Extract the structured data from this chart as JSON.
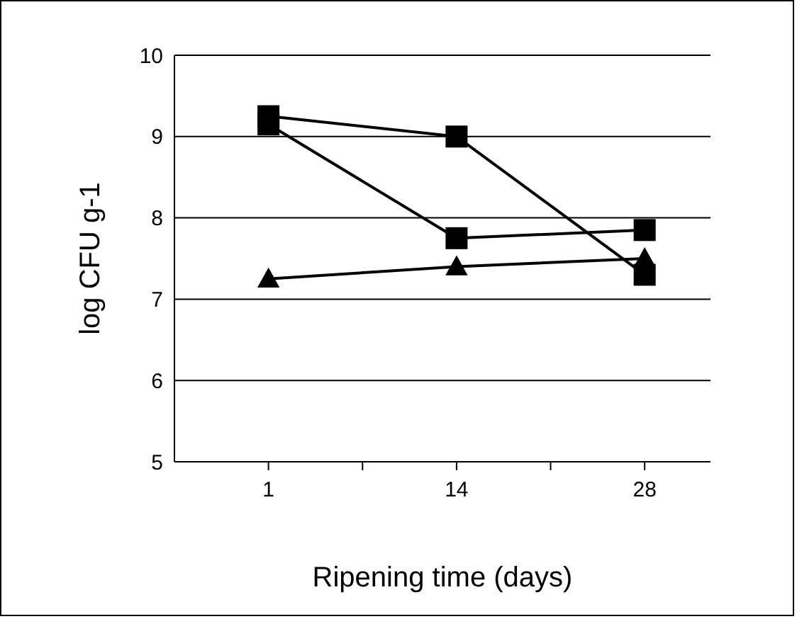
{
  "chart_data": {
    "type": "line",
    "xlabel": "Ripening time (days)",
    "ylabel": "log CFU g-1",
    "categories": [
      "1",
      "14",
      "28"
    ],
    "series": [
      {
        "color": "#000000",
        "marker": "square",
        "values": [
          9.25,
          9.0,
          7.3
        ]
      },
      {
        "color": "#000000",
        "marker": "square",
        "values": [
          9.15,
          7.75,
          7.85
        ]
      },
      {
        "color": "#000000",
        "marker": "triangle",
        "values": [
          7.25,
          7.4,
          7.5
        ]
      }
    ],
    "ylim": [
      5,
      10
    ],
    "yticks": [
      5,
      6,
      7,
      8,
      9,
      10
    ],
    "grid": "y",
    "line_style": "solid"
  }
}
